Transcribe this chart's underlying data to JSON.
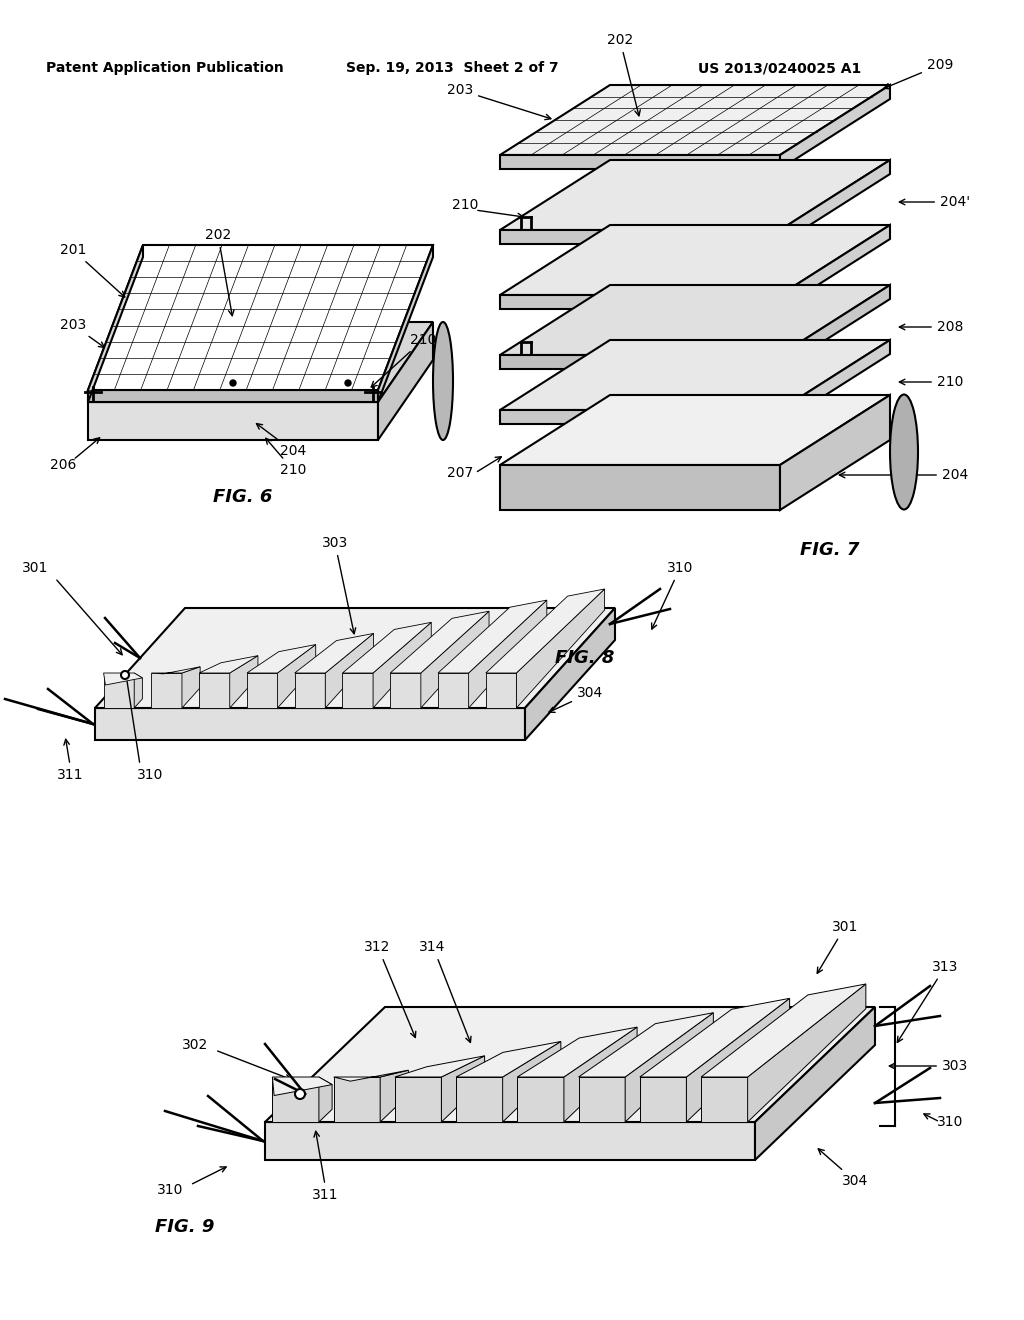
{
  "background_color": "#ffffff",
  "header_left": "Patent Application Publication",
  "header_mid": "Sep. 19, 2013  Sheet 2 of 7",
  "header_right": "US 2013/0240025 A1",
  "fig6_label": "FIG. 6",
  "fig7_label": "FIG. 7",
  "fig8_label": "FIG. 8",
  "fig9_label": "FIG. 9",
  "line_color": "#000000",
  "line_width": 1.5,
  "annotation_fontsize": 10,
  "label_fontsize": 13,
  "header_fontsize": 10
}
